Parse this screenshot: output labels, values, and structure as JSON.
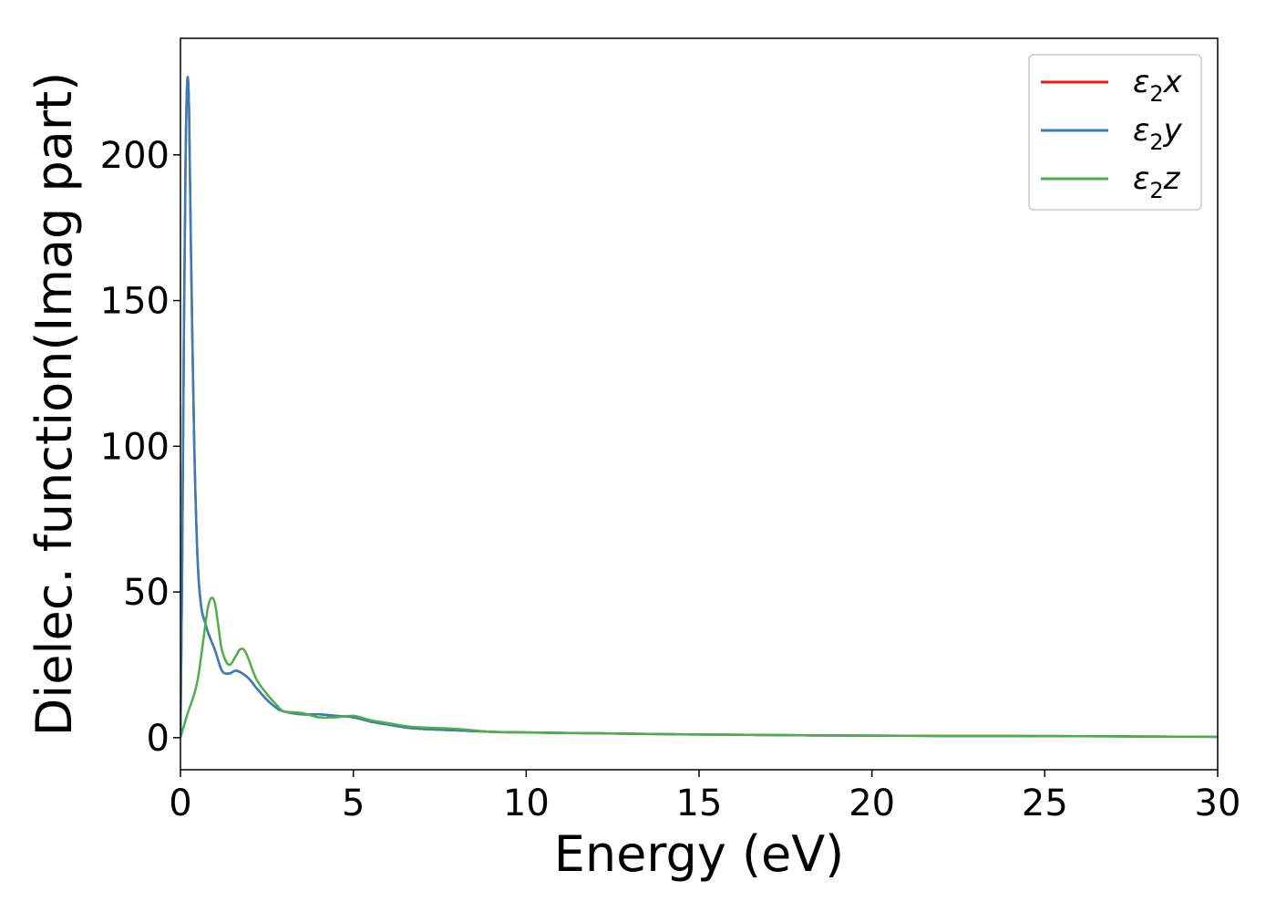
{
  "chart_data": {
    "type": "line",
    "xlabel": "Energy (eV)",
    "ylabel": "Dielec. function(Imag part)",
    "xlim": [
      0,
      30
    ],
    "ylim": [
      -11,
      240
    ],
    "xticks": [
      0,
      5,
      10,
      15,
      20,
      25,
      30
    ],
    "yticks": [
      0,
      50,
      100,
      150,
      200
    ],
    "xtick_labels": [
      "0",
      "5",
      "10",
      "15",
      "20",
      "25",
      "30"
    ],
    "ytick_labels": [
      "0",
      "50",
      "100",
      "150",
      "200"
    ],
    "legend_position": "top-right",
    "grid": false,
    "series": [
      {
        "name": "ε2x",
        "legend_main": "ε",
        "legend_sub": "2",
        "legend_tail": "x",
        "color": "#e41a1c",
        "x": [
          0,
          0.05,
          0.1,
          0.15,
          0.2,
          0.25,
          0.3,
          0.4,
          0.5,
          0.6,
          0.7,
          0.8,
          1.0,
          1.2,
          1.4,
          1.6,
          1.8,
          2.0,
          2.2,
          2.5,
          2.8,
          3.0,
          3.5,
          4.0,
          4.5,
          5.0,
          5.5,
          6.0,
          6.5,
          7.0,
          8.0,
          9.0,
          10,
          12,
          14,
          16,
          18,
          20,
          22,
          24,
          26,
          28,
          30
        ],
        "y": [
          0,
          60,
          140,
          200,
          226,
          215,
          170,
          100,
          60,
          45,
          40,
          36,
          30,
          23,
          22,
          23,
          22,
          20,
          17,
          13,
          10,
          9,
          8,
          8,
          7.5,
          7,
          5.5,
          4.5,
          3.5,
          3,
          2.5,
          2,
          1.8,
          1.5,
          1.2,
          1,
          0.8,
          0.7,
          0.6,
          0.6,
          0.5,
          0.4,
          0.3
        ]
      },
      {
        "name": "ε2y",
        "legend_main": "ε",
        "legend_sub": "2",
        "legend_tail": "y",
        "color": "#377eb8",
        "x": [
          0,
          0.05,
          0.1,
          0.15,
          0.2,
          0.25,
          0.3,
          0.4,
          0.5,
          0.6,
          0.7,
          0.8,
          1.0,
          1.2,
          1.4,
          1.6,
          1.8,
          2.0,
          2.2,
          2.5,
          2.8,
          3.0,
          3.5,
          4.0,
          4.5,
          5.0,
          5.5,
          6.0,
          6.5,
          7.0,
          8.0,
          9.0,
          10,
          12,
          14,
          16,
          18,
          20,
          22,
          24,
          26,
          28,
          30
        ],
        "y": [
          0,
          60,
          140,
          200,
          226,
          215,
          170,
          100,
          60,
          45,
          40,
          36,
          30,
          23,
          22,
          23,
          22,
          20,
          17,
          13,
          10,
          9,
          8,
          8,
          7.5,
          7,
          5.5,
          4.5,
          3.5,
          3,
          2.5,
          2,
          1.8,
          1.5,
          1.2,
          1,
          0.8,
          0.7,
          0.6,
          0.6,
          0.5,
          0.4,
          0.3
        ]
      },
      {
        "name": "ε2z",
        "legend_main": "ε",
        "legend_sub": "2",
        "legend_tail": "z",
        "color": "#4daf4a",
        "x": [
          0,
          0.2,
          0.4,
          0.5,
          0.6,
          0.7,
          0.8,
          0.9,
          1.0,
          1.1,
          1.2,
          1.4,
          1.6,
          1.7,
          1.8,
          1.9,
          2.0,
          2.2,
          2.5,
          2.8,
          3.0,
          3.5,
          4.0,
          4.5,
          5.0,
          5.5,
          6.0,
          6.5,
          7.0,
          8.0,
          9.0,
          10,
          12,
          14,
          16,
          18,
          20,
          22,
          24,
          26,
          28,
          30
        ],
        "y": [
          0,
          8,
          15,
          20,
          28,
          37,
          45,
          48,
          46,
          38,
          30,
          25,
          28,
          30,
          30.5,
          29,
          26,
          20,
          15,
          11,
          9,
          8.5,
          7,
          7,
          7.5,
          6,
          5,
          4,
          3.5,
          3,
          2,
          1.8,
          1.5,
          1.2,
          1,
          0.8,
          0.7,
          0.6,
          0.6,
          0.5,
          0.4,
          0.3
        ]
      }
    ]
  }
}
